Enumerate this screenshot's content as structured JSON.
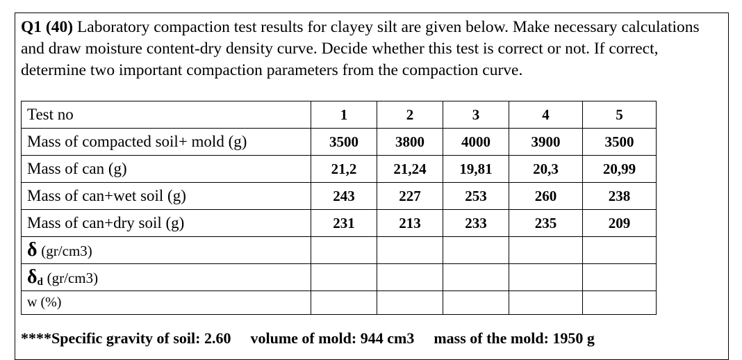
{
  "question": {
    "number": "Q1 (40)",
    "text": " Laboratory compaction test results for clayey silt are given below. Make necessary calculations and draw moisture content-dry density curve. Decide whether this test is correct or not. If correct, determine two important compaction parameters from the compaction curve."
  },
  "table": {
    "header_label": "Test no",
    "test_numbers": [
      "1",
      "2",
      "3",
      "4",
      "5"
    ],
    "rows": [
      {
        "label": "Mass of compacted soil+ mold (g)",
        "values": [
          "3500",
          "3800",
          "4000",
          "3900",
          "3500"
        ]
      },
      {
        "label": "Mass of can (g)",
        "values": [
          "21,2",
          "21,24",
          "19,81",
          "20,3",
          "20,99"
        ]
      },
      {
        "label": "Mass of can+wet soil (g)",
        "values": [
          "243",
          "227",
          "253",
          "260",
          "238"
        ]
      },
      {
        "label": "Mass of can+dry soil (g)",
        "values": [
          "231",
          "213",
          "233",
          "235",
          "209"
        ]
      }
    ],
    "empty_rows": {
      "bulk_density": {
        "symbol": "δ",
        "unit": "(gr/cm3)"
      },
      "dry_density": {
        "symbol": "δ",
        "subscript": "d",
        "unit": "(gr/cm3)"
      },
      "water_content": {
        "label": "w (%)"
      }
    }
  },
  "footer": {
    "specific_gravity": "****Specific gravity of soil: 2.60",
    "mold_volume": "volume of mold: 944 cm3",
    "mold_mass": "mass of the mold: 1950 g"
  }
}
